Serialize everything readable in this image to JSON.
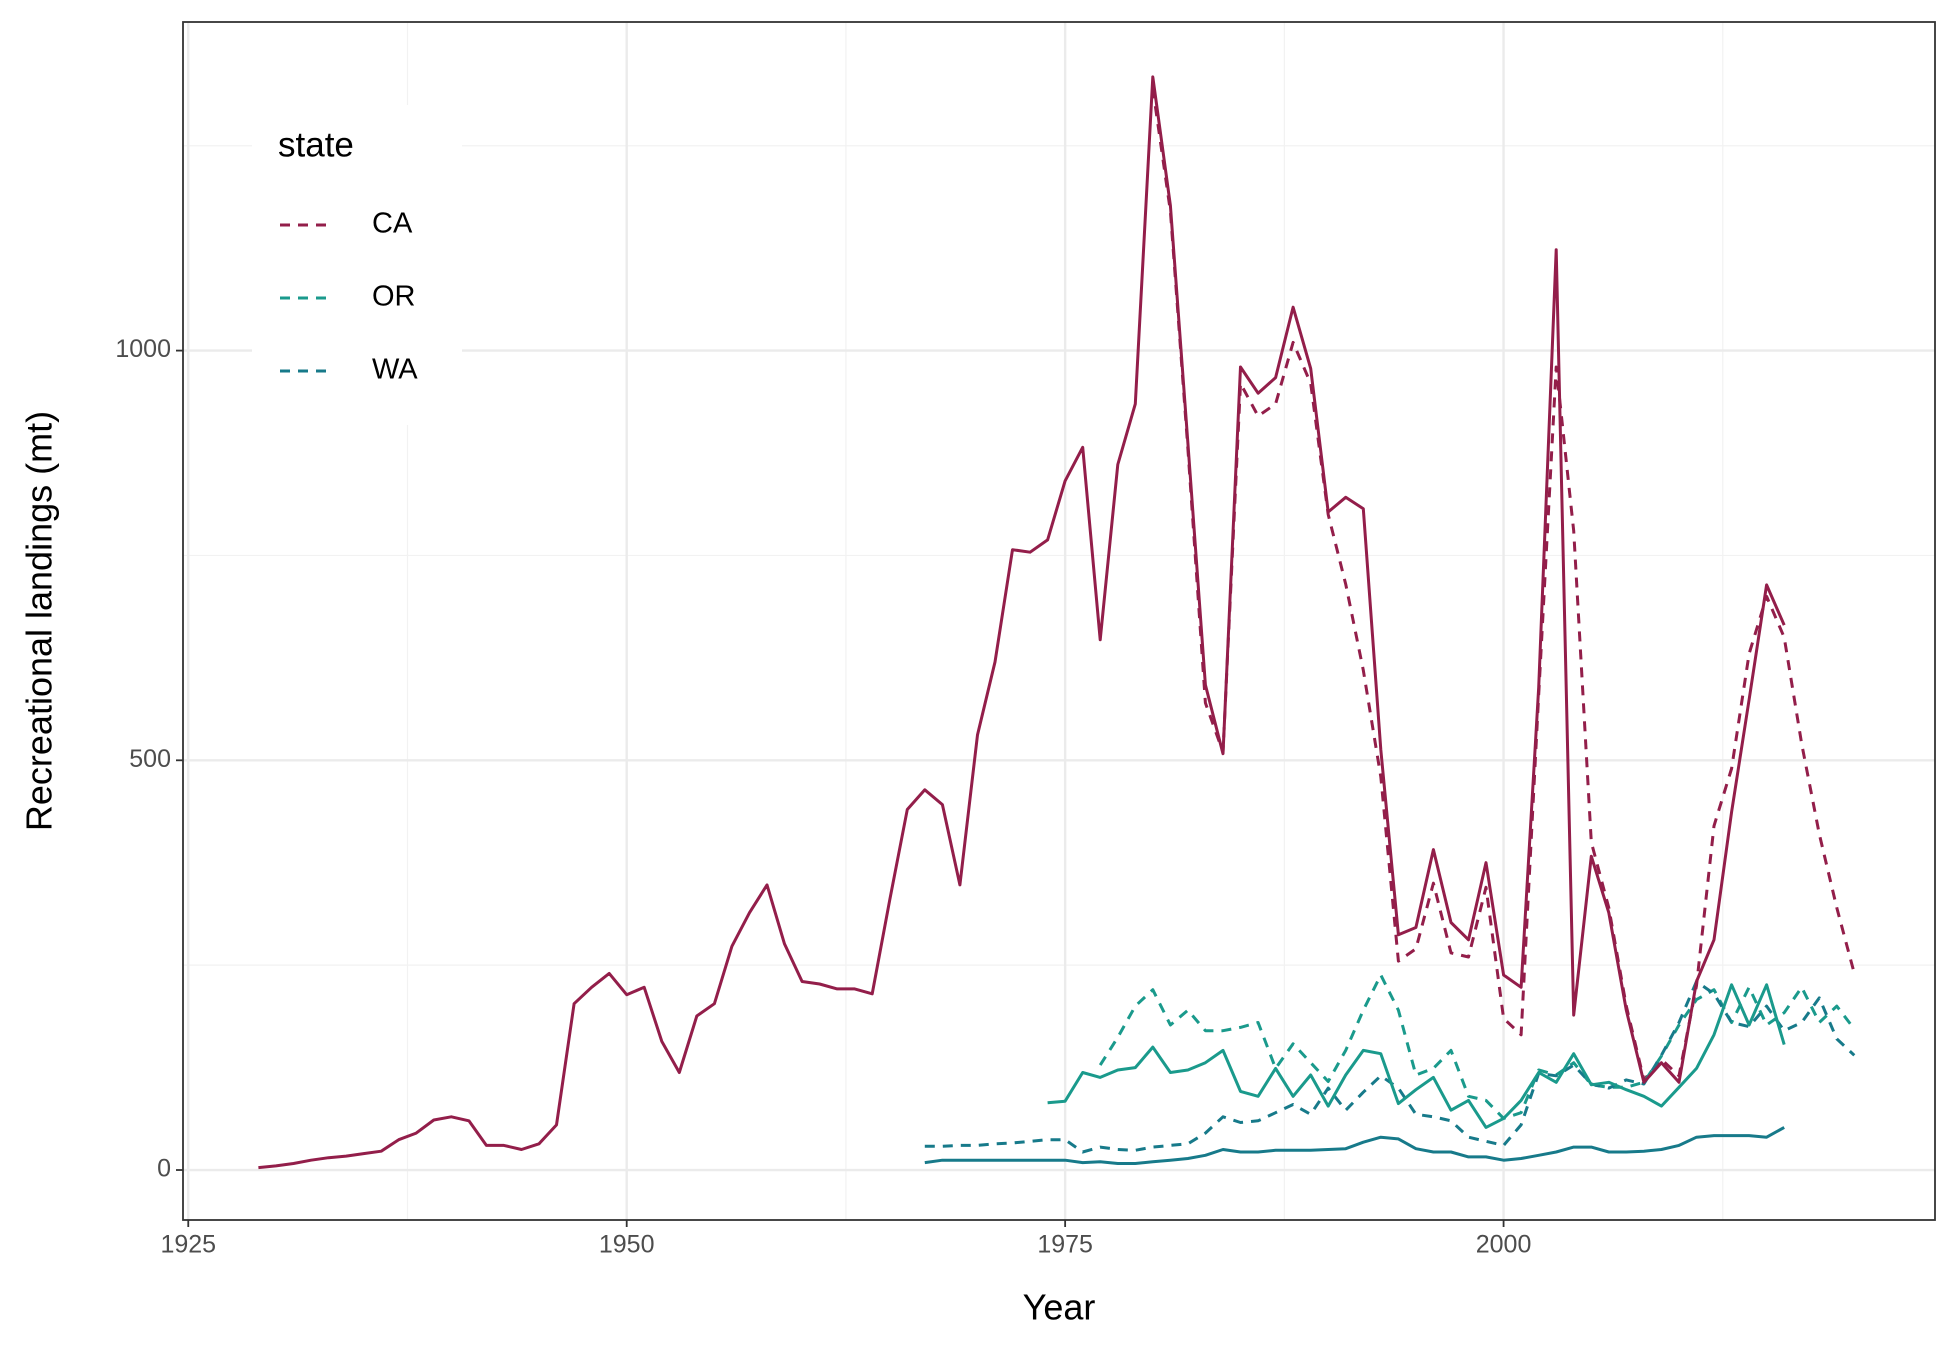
{
  "chart_data": {
    "type": "line",
    "xlabel": "Year",
    "ylabel": "Recreational landings (mt)",
    "legend_title": "state",
    "legend_position": "top-left",
    "grid": true,
    "xlim": [
      1924.7,
      2024.6
    ],
    "ylim": [
      -61,
      1401
    ],
    "xticks": [
      1925,
      1950,
      1975,
      2000
    ],
    "yticks": [
      0,
      500,
      1000
    ],
    "series": [
      {
        "name": "CA",
        "color": "#931e4a",
        "dashed": true,
        "x": [
          1980,
          1981,
          1982,
          1983,
          1984,
          1985,
          1986,
          1987,
          1988,
          1989,
          1990,
          1991,
          1992,
          1993,
          1994,
          1995,
          1996,
          1997,
          1998,
          1999,
          2000,
          2001,
          2002,
          2003,
          2004,
          2005,
          2006,
          2007,
          2008,
          2009,
          2010,
          2011,
          2012,
          2013,
          2014,
          2015,
          2016,
          2017,
          2018,
          2019,
          2020
        ],
        "values": [
          1320,
          1170,
          880,
          570,
          510,
          960,
          920,
          935,
          1010,
          960,
          800,
          715,
          610,
          480,
          255,
          270,
          350,
          265,
          260,
          345,
          185,
          165,
          580,
          980,
          780,
          400,
          320,
          200,
          110,
          135,
          115,
          225,
          420,
          490,
          630,
          700,
          650,
          520,
          410,
          320,
          240
        ]
      },
      {
        "name": "OR",
        "color": "#1a9a8c",
        "dashed": true,
        "x": [
          1977,
          1978,
          1979,
          1980,
          1981,
          1982,
          1983,
          1984,
          1985,
          1986,
          1987,
          1988,
          1989,
          1990,
          1991,
          1992,
          1993,
          1994,
          1995,
          1996,
          1997,
          1998,
          1999,
          2000,
          2001,
          2002,
          2003,
          2004,
          2005,
          2006,
          2007,
          2008,
          2009,
          2010,
          2011,
          2012,
          2013,
          2014,
          2015,
          2016,
          2017,
          2018,
          2019,
          2020
        ],
        "values": [
          128,
          162,
          200,
          220,
          177,
          195,
          170,
          170,
          174,
          180,
          124,
          154,
          131,
          108,
          146,
          195,
          238,
          195,
          116,
          124,
          146,
          90,
          85,
          63,
          70,
          122,
          116,
          131,
          104,
          101,
          101,
          107,
          139,
          177,
          208,
          220,
          180,
          223,
          177,
          192,
          223,
          180,
          200,
          172
        ]
      },
      {
        "name": "WA",
        "color": "#177a8a",
        "dashed": true,
        "x": [
          1967,
          1968,
          1969,
          1970,
          1971,
          1972,
          1973,
          1974,
          1975,
          1976,
          1977,
          1978,
          1979,
          1980,
          1981,
          1982,
          1983,
          1984,
          1985,
          1986,
          1987,
          1988,
          1989,
          1990,
          1991,
          1992,
          1993,
          1994,
          1995,
          1996,
          1997,
          1998,
          1999,
          2000,
          2001,
          2002,
          2003,
          2004,
          2005,
          2006,
          2007,
          2008,
          2009,
          2010,
          2011,
          2012,
          2013,
          2014,
          2015,
          2016,
          2017,
          2018,
          2019,
          2020
        ],
        "values": [
          29,
          29,
          30,
          30,
          32,
          33,
          35,
          37,
          37,
          22,
          28,
          25,
          24,
          28,
          30,
          32,
          45,
          65,
          58,
          60,
          70,
          80,
          68,
          100,
          73,
          95,
          115,
          100,
          68,
          65,
          60,
          40,
          35,
          30,
          55,
          118,
          115,
          128,
          105,
          100,
          110,
          105,
          140,
          180,
          230,
          215,
          180,
          175,
          200,
          170,
          180,
          210,
          160,
          140
        ]
      },
      {
        "name": "CA",
        "color": "#931e4a",
        "dashed": false,
        "x": [
          1929,
          1930,
          1931,
          1932,
          1933,
          1934,
          1935,
          1936,
          1937,
          1938,
          1939,
          1940,
          1941,
          1942,
          1943,
          1944,
          1945,
          1946,
          1947,
          1948,
          1949,
          1950,
          1951,
          1952,
          1953,
          1954,
          1955,
          1956,
          1957,
          1958,
          1959,
          1960,
          1961,
          1962,
          1963,
          1964,
          1965,
          1966,
          1967,
          1968,
          1969,
          1970,
          1971,
          1972,
          1973,
          1974,
          1975,
          1976,
          1977,
          1978,
          1979,
          1980,
          1981,
          1982,
          1983,
          1984,
          1985,
          1986,
          1987,
          1988,
          1989,
          1990,
          1991,
          1992,
          1993,
          1994,
          1995,
          1996,
          1997,
          1998,
          1999,
          2000,
          2001,
          2002,
          2003,
          2004,
          2005,
          2006,
          2007,
          2008,
          2009,
          2010,
          2011,
          2012,
          2013,
          2014,
          2015,
          2016
        ],
        "values": [
          3,
          5,
          8,
          12,
          15,
          17,
          20,
          23,
          37,
          45,
          61,
          65,
          60,
          30,
          30,
          25,
          32,
          55,
          203,
          223,
          240,
          214,
          223,
          157,
          119,
          188,
          203,
          273,
          314,
          348,
          276,
          230,
          227,
          221,
          221,
          215,
          330,
          440,
          464,
          446,
          348,
          531,
          620,
          757,
          754,
          769,
          841,
          882,
          647,
          861,
          935,
          1334,
          1177,
          887,
          592,
          508,
          980,
          948,
          967,
          1053,
          978,
          803,
          821,
          807,
          513,
          287,
          296,
          391,
          302,
          281,
          375,
          238,
          223,
          589,
          1123,
          189,
          383,
          314,
          195,
          107,
          131,
          107,
          230,
          281,
          437,
          574,
          714,
          665
        ]
      },
      {
        "name": "OR",
        "color": "#1a9a8c",
        "dashed": false,
        "x": [
          1974,
          1975,
          1976,
          1977,
          1978,
          1979,
          1980,
          1981,
          1982,
          1983,
          1984,
          1985,
          1986,
          1987,
          1988,
          1989,
          1990,
          1991,
          1992,
          1993,
          1994,
          1995,
          1996,
          1997,
          1998,
          1999,
          2000,
          2001,
          2002,
          2003,
          2004,
          2005,
          2006,
          2007,
          2008,
          2009,
          2010,
          2011,
          2012,
          2013,
          2014,
          2015,
          2016
        ],
        "values": [
          82,
          84,
          119,
          113,
          122,
          125,
          150,
          119,
          122,
          131,
          146,
          96,
          90,
          124,
          90,
          116,
          78,
          116,
          146,
          142,
          81,
          98,
          113,
          73,
          85,
          52,
          63,
          85,
          119,
          107,
          142,
          104,
          107,
          98,
          90,
          78,
          101,
          124,
          165,
          226,
          177,
          226,
          153
        ]
      },
      {
        "name": "WA",
        "color": "#177a8a",
        "dashed": false,
        "x": [
          1967,
          1968,
          1969,
          1970,
          1971,
          1972,
          1973,
          1974,
          1975,
          1976,
          1977,
          1978,
          1979,
          1980,
          1981,
          1982,
          1983,
          1984,
          1985,
          1986,
          1987,
          1988,
          1989,
          1990,
          1991,
          1992,
          1993,
          1994,
          1995,
          1996,
          1997,
          1998,
          1999,
          2000,
          2001,
          2002,
          2003,
          2004,
          2005,
          2006,
          2007,
          2008,
          2009,
          2010,
          2011,
          2012,
          2013,
          2014,
          2015,
          2016
        ],
        "values": [
          9,
          12,
          12,
          12,
          12,
          12,
          12,
          12,
          12,
          9,
          10,
          8,
          8,
          10,
          12,
          14,
          18,
          25,
          22,
          22,
          24,
          24,
          24,
          25,
          26,
          34,
          40,
          38,
          26,
          22,
          22,
          16,
          16,
          12,
          14,
          18,
          22,
          28,
          28,
          22,
          22,
          23,
          25,
          30,
          40,
          42,
          42,
          42,
          40,
          52
        ]
      }
    ]
  }
}
